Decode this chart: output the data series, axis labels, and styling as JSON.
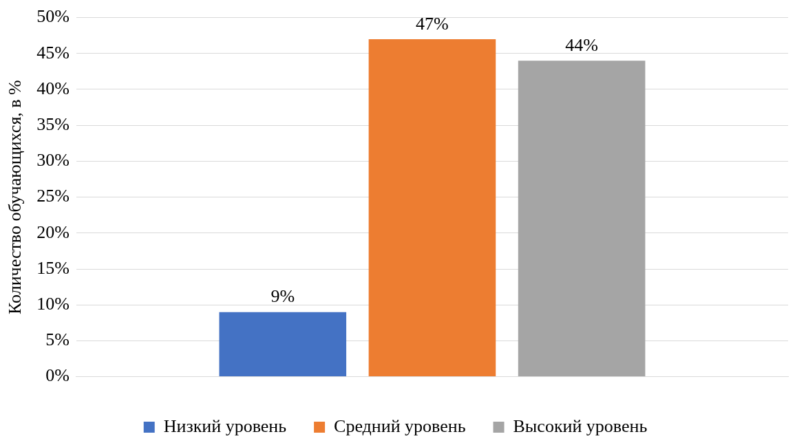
{
  "chart_data": {
    "type": "bar",
    "ylabel": "Количество обучающихся, в %",
    "categories": [
      null
    ],
    "series": [
      {
        "name": "Низкий уровень",
        "color": "#4472c4",
        "values": [
          9
        ],
        "value_labels": [
          "9%"
        ]
      },
      {
        "name": "Средний уровень",
        "color": "#ed7d31",
        "values": [
          47
        ],
        "value_labels": [
          "47%"
        ]
      },
      {
        "name": "Высокий уровень",
        "color": "#a5a5a5",
        "values": [
          44
        ],
        "value_labels": [
          "44%"
        ]
      }
    ],
    "ylim": [
      0,
      50
    ],
    "yticks": [
      {
        "value": 0,
        "label": "0%"
      },
      {
        "value": 5,
        "label": "5%"
      },
      {
        "value": 10,
        "label": "10%"
      },
      {
        "value": 15,
        "label": "15%"
      },
      {
        "value": 20,
        "label": "20%"
      },
      {
        "value": 25,
        "label": "25%"
      },
      {
        "value": 30,
        "label": "30%"
      },
      {
        "value": 35,
        "label": "35%"
      },
      {
        "value": 40,
        "label": "40%"
      },
      {
        "value": 45,
        "label": "45%"
      },
      {
        "value": 50,
        "label": "50%"
      }
    ],
    "grid": "y",
    "legend": "bottom"
  }
}
